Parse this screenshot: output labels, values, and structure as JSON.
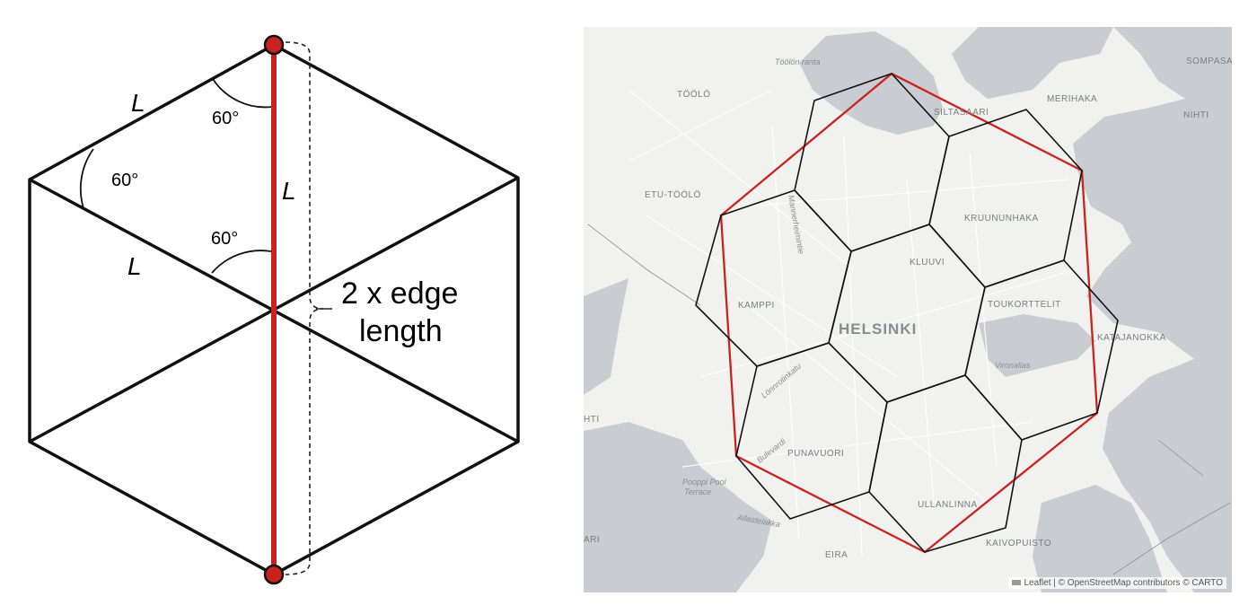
{
  "diagram": {
    "edge_label_top": "L",
    "edge_label_mid": "L",
    "edge_label_vertical": "L",
    "angle_top": "60°",
    "angle_left": "60°",
    "angle_center": "60°",
    "dimension_line1": "2 x edge",
    "dimension_line2": "length",
    "colors": {
      "highlight": "#c8231f",
      "stroke": "#111111"
    }
  },
  "map": {
    "city_label": "HELSINKI",
    "districts": [
      "SOMPASA",
      "MERIHAKA",
      "NIHTI",
      "TÖÖLÖ",
      "SILTASAARI",
      "ETU-TÖÖLÖ",
      "KRUUNUNHAKA",
      "KLUUVI",
      "KAMPPI",
      "TOUKORTTELIT",
      "KATAJANOKKA",
      "PUNAVUORI",
      "ULLANLINNA",
      "KAIVOPUISTO",
      "EIRA"
    ],
    "partial_labels": [
      "HTI",
      "ARI"
    ],
    "street_labels": [
      "Mannerheimintie",
      "Töölön ranta",
      "Lönnrotinkatu",
      "Vironallas",
      "Bulevardi",
      "Allastelakka",
      "Pooppi Pool",
      "Terrace"
    ],
    "attribution": {
      "leaflet": "Leaflet",
      "osm": "| © OpenStreetMap contributors © CARTO"
    },
    "colors": {
      "water": "#c9cdd1",
      "land": "#f1f1f0",
      "hex": "#111111",
      "hull": "#c8231f"
    }
  }
}
